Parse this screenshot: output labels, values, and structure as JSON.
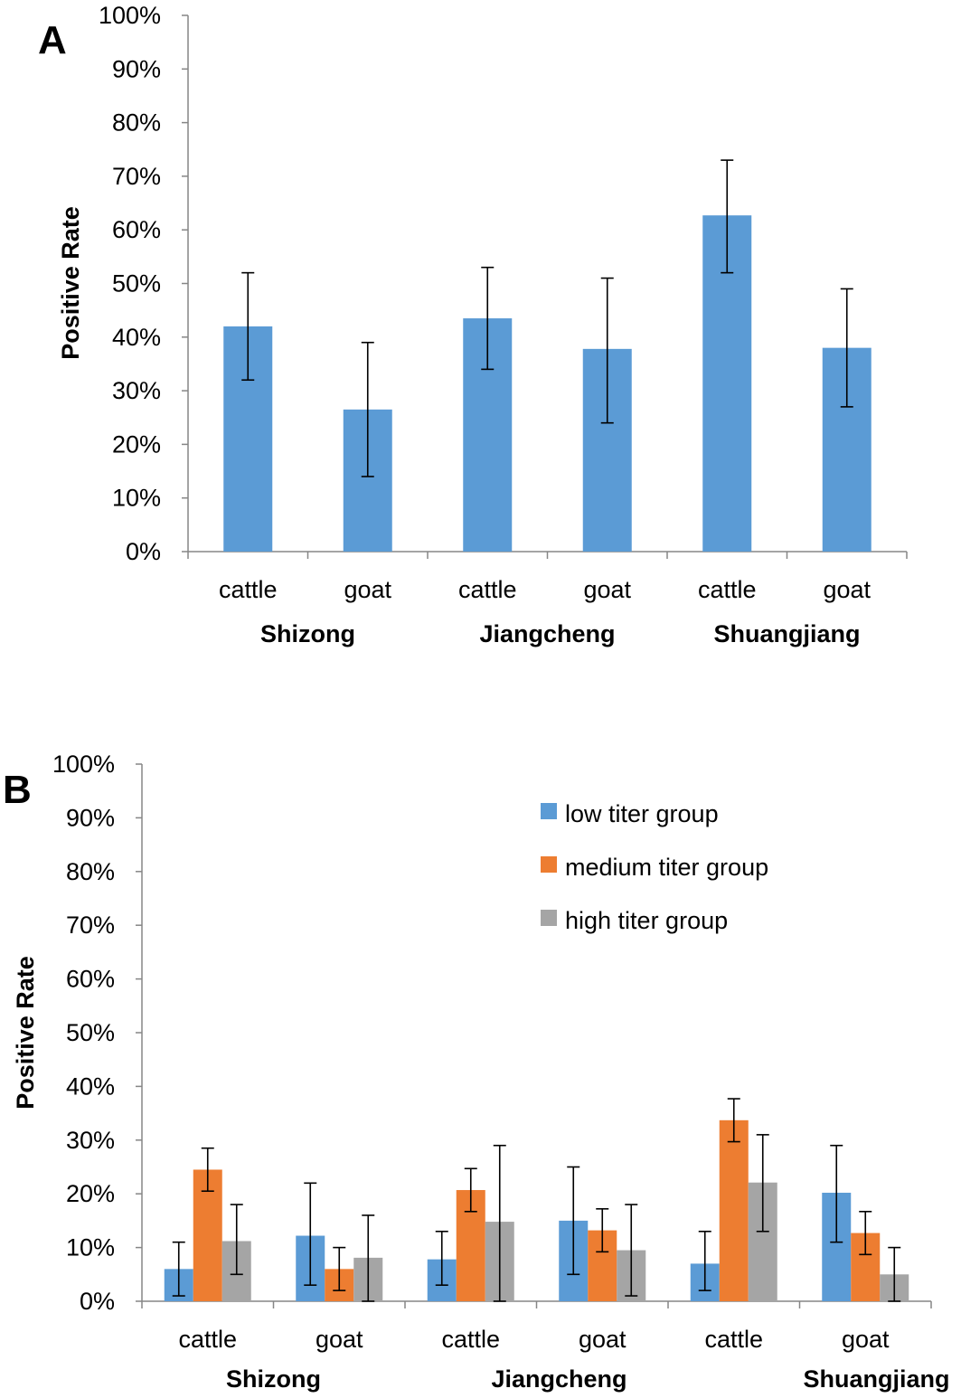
{
  "chart_data": [
    {
      "type": "bar",
      "panel_label": "A",
      "ylabel": "Positive Rate",
      "ylim": [
        0,
        1
      ],
      "yticks": [
        "0%",
        "10%",
        "20%",
        "30%",
        "40%",
        "50%",
        "60%",
        "70%",
        "80%",
        "90%",
        "100%"
      ],
      "groups": [
        "Shizong",
        "Jiangcheng",
        "Shuangjiang"
      ],
      "categories": [
        "cattle",
        "goat",
        "cattle",
        "goat",
        "cattle",
        "goat"
      ],
      "series": [
        {
          "name": "Positive Rate",
          "color": "#5B9BD5",
          "values": [
            0.42,
            0.265,
            0.435,
            0.378,
            0.627,
            0.38
          ],
          "err_low": [
            0.32,
            0.14,
            0.34,
            0.24,
            0.52,
            0.27
          ],
          "err_high": [
            0.52,
            0.39,
            0.53,
            0.51,
            0.73,
            0.49
          ]
        }
      ]
    },
    {
      "type": "bar",
      "panel_label": "B",
      "ylabel": "Positive Rate",
      "ylim": [
        0,
        1
      ],
      "yticks": [
        "0%",
        "10%",
        "20%",
        "30%",
        "40%",
        "50%",
        "60%",
        "70%",
        "80%",
        "90%",
        "100%"
      ],
      "groups": [
        "Shizong",
        "Jiangcheng",
        "Shuangjiang"
      ],
      "categories": [
        "cattle",
        "goat",
        "cattle",
        "goat",
        "cattle",
        "goat"
      ],
      "legend_position": "top-right",
      "series": [
        {
          "name": "low titer group",
          "color": "#5B9BD5",
          "values": [
            0.06,
            0.122,
            0.078,
            0.15,
            0.07,
            0.202
          ],
          "err_low": [
            0.01,
            0.03,
            0.03,
            0.05,
            0.02,
            0.11
          ],
          "err_high": [
            0.11,
            0.22,
            0.13,
            0.25,
            0.13,
            0.29
          ]
        },
        {
          "name": "medium titer group",
          "color": "#ED7D31",
          "values": [
            0.245,
            0.06,
            0.207,
            0.132,
            0.337,
            0.127
          ],
          "err_low": [
            0.205,
            0.02,
            0.167,
            0.092,
            0.297,
            0.087
          ],
          "err_high": [
            0.285,
            0.1,
            0.247,
            0.172,
            0.377,
            0.167
          ]
        },
        {
          "name": "high titer group",
          "color": "#A5A5A5",
          "values": [
            0.112,
            0.081,
            0.148,
            0.095,
            0.221,
            0.05
          ],
          "err_low": [
            0.05,
            0.0,
            0.0,
            0.01,
            0.13,
            0.0
          ],
          "err_high": [
            0.18,
            0.16,
            0.29,
            0.18,
            0.31,
            0.1
          ]
        }
      ]
    }
  ]
}
